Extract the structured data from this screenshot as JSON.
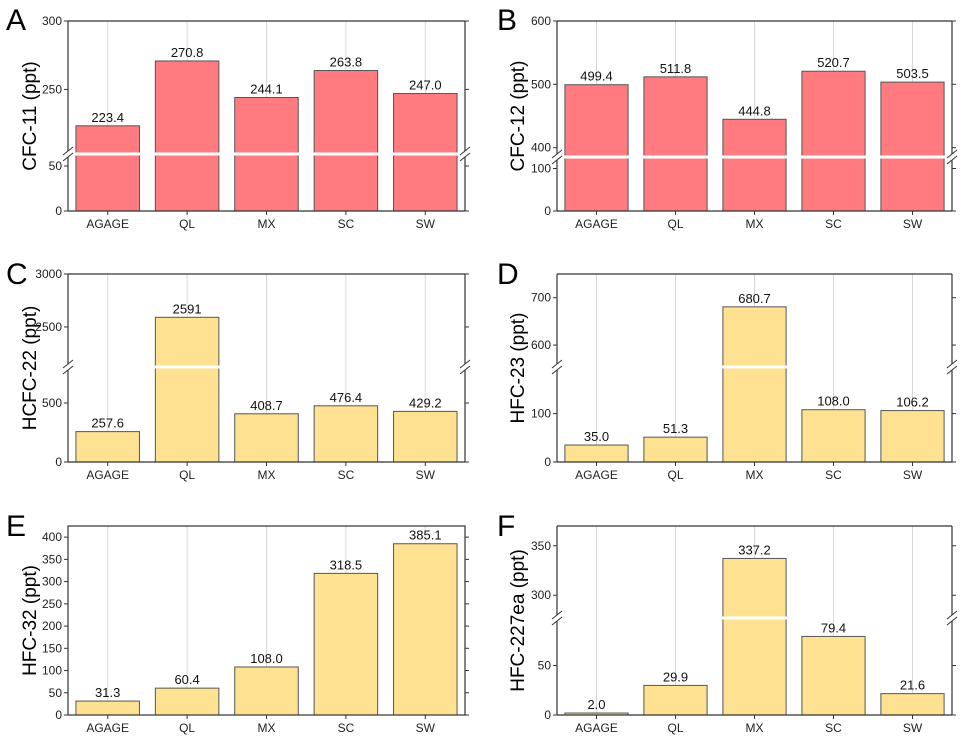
{
  "chart_data": [
    {
      "panel": "A",
      "type": "bar",
      "title": "",
      "xlabel": "",
      "ylabel": "CFC-11 (ppt)",
      "categories": [
        "AGAGE",
        "QL",
        "MX",
        "SC",
        "SW"
      ],
      "values": [
        223.4,
        270.8,
        244.1,
        263.8,
        247.0
      ],
      "value_labels": [
        "223.4",
        "270.8",
        "244.1",
        "263.8",
        "247.0"
      ],
      "bar_color": "#ff7b7f",
      "axis_break": true,
      "lower_range": [
        0,
        60
      ],
      "upper_range": [
        205,
        300
      ],
      "yticks_lower": [
        0,
        50
      ],
      "yticks_upper": [
        250,
        300
      ],
      "grid": "vertical"
    },
    {
      "panel": "B",
      "type": "bar",
      "title": "",
      "xlabel": "",
      "ylabel": "CFC-12 (ppt)",
      "categories": [
        "AGAGE",
        "QL",
        "MX",
        "SC",
        "SW"
      ],
      "values": [
        499.4,
        511.8,
        444.8,
        520.7,
        503.5
      ],
      "value_labels": [
        "499.4",
        "511.8",
        "444.8",
        "520.7",
        "503.5"
      ],
      "bar_color": "#ff7b7f",
      "axis_break": true,
      "lower_range": [
        0,
        120
      ],
      "upper_range": [
        390,
        600
      ],
      "yticks_lower": [
        0,
        100
      ],
      "yticks_upper": [
        400,
        500,
        600
      ],
      "grid": "vertical"
    },
    {
      "panel": "C",
      "type": "bar",
      "title": "",
      "xlabel": "",
      "ylabel": "HCFC-22 (ppt)",
      "categories": [
        "AGAGE",
        "QL",
        "MX",
        "SC",
        "SW"
      ],
      "values": [
        257.6,
        2591,
        408.7,
        476.4,
        429.2
      ],
      "value_labels": [
        "257.6",
        "2591",
        "408.7",
        "476.4",
        "429.2"
      ],
      "bar_color": "#ffe291",
      "axis_break": true,
      "lower_range": [
        0,
        780
      ],
      "upper_range": [
        2150,
        3000
      ],
      "yticks_lower": [
        0,
        500
      ],
      "yticks_upper": [
        2500,
        3000
      ],
      "grid": "vertical"
    },
    {
      "panel": "D",
      "type": "bar",
      "title": "",
      "xlabel": "",
      "ylabel": "HFC-23 (ppt)",
      "categories": [
        "AGAGE",
        "QL",
        "MX",
        "SC",
        "SW"
      ],
      "values": [
        35.0,
        51.3,
        680.7,
        108.0,
        106.2
      ],
      "value_labels": [
        "35.0",
        "51.3",
        "680.7",
        "108.0",
        "106.2"
      ],
      "bar_color": "#ffe291",
      "axis_break": true,
      "lower_range": [
        0,
        190
      ],
      "upper_range": [
        560,
        750
      ],
      "yticks_lower": [
        0,
        100
      ],
      "yticks_upper": [
        600,
        700
      ],
      "grid": "vertical"
    },
    {
      "panel": "E",
      "type": "bar",
      "title": "",
      "xlabel": "",
      "ylabel": "HFC-32 (ppt)",
      "categories": [
        "AGAGE",
        "QL",
        "MX",
        "SC",
        "SW"
      ],
      "values": [
        31.3,
        60.4,
        108.0,
        318.5,
        385.1
      ],
      "value_labels": [
        "31.3",
        "60.4",
        "108.0",
        "318.5",
        "385.1"
      ],
      "bar_color": "#ffe291",
      "axis_break": false,
      "ylim": [
        0,
        425
      ],
      "yticks": [
        0,
        50,
        100,
        150,
        200,
        250,
        300,
        350,
        400
      ],
      "grid": "vertical"
    },
    {
      "panel": "F",
      "type": "bar",
      "title": "",
      "xlabel": "",
      "ylabel": "HFC-227ea (ppt)",
      "categories": [
        "AGAGE",
        "QL",
        "MX",
        "SC",
        "SW"
      ],
      "values": [
        2.0,
        29.9,
        337.2,
        79.4,
        21.6
      ],
      "value_labels": [
        "2.0",
        "29.9",
        "337.2",
        "79.4",
        "21.6"
      ],
      "bar_color": "#ffe291",
      "axis_break": true,
      "lower_range": [
        0,
        95
      ],
      "upper_range": [
        280,
        370
      ],
      "yticks_lower": [
        0,
        50
      ],
      "yticks_upper": [
        300,
        350
      ],
      "grid": "vertical"
    }
  ]
}
